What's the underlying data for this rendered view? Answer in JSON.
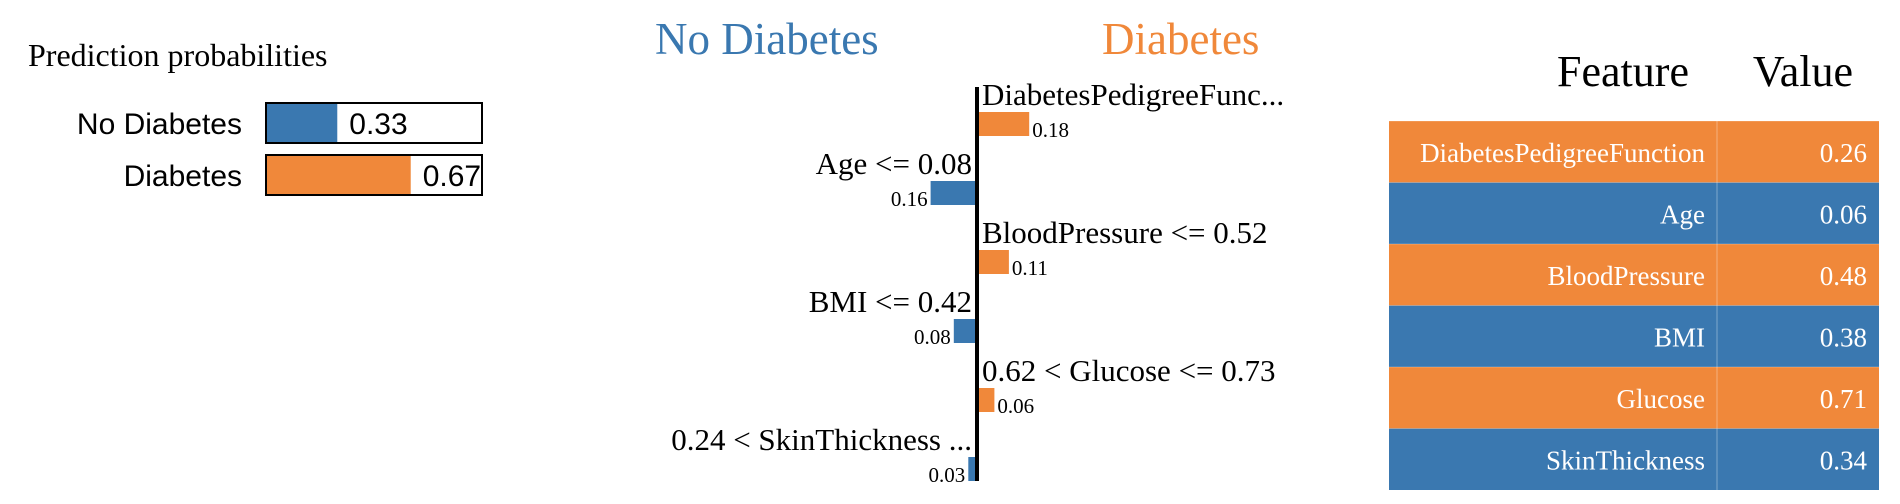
{
  "prediction_probabilities": {
    "title": "Prediction probabilities",
    "items": [
      {
        "label": "No Diabetes",
        "value": 0.33,
        "value_text": "0.33",
        "color": "#3a78b0"
      },
      {
        "label": "Diabetes",
        "value": 0.67,
        "value_text": "0.67",
        "color": "#f0883a"
      }
    ]
  },
  "explanation": {
    "left_title": "No Diabetes",
    "right_title": "Diabetes",
    "left_color": "#3a78b0",
    "right_color": "#f0883a"
  },
  "feature_table": {
    "headers": [
      "Feature",
      "Value"
    ],
    "rows": [
      {
        "feature": "DiabetesPedigreeFunction",
        "value": "0.26",
        "side": "right"
      },
      {
        "feature": "Age",
        "value": "0.06",
        "side": "left"
      },
      {
        "feature": "BloodPressure",
        "value": "0.48",
        "side": "right"
      },
      {
        "feature": "BMI",
        "value": "0.38",
        "side": "left"
      },
      {
        "feature": "Glucose",
        "value": "0.71",
        "side": "right"
      },
      {
        "feature": "SkinThickness",
        "value": "0.34",
        "side": "left"
      }
    ]
  },
  "chart_data": [
    {
      "type": "bar",
      "title": "Prediction probabilities",
      "categories": [
        "No Diabetes",
        "Diabetes"
      ],
      "values": [
        0.33,
        0.67
      ],
      "xlim": [
        0,
        1
      ],
      "grid": false
    },
    {
      "type": "bar",
      "title": "",
      "orientation": "horizontal",
      "legend": [
        "No Diabetes",
        "Diabetes"
      ],
      "categories": [
        "DiabetesPedigreeFunc...",
        "Age <= 0.08",
        "BloodPressure <= 0.52",
        "BMI <= 0.42",
        "0.62 < Glucose <= 0.73",
        "0.24 < SkinThickness ..."
      ],
      "values": [
        0.18,
        -0.16,
        0.11,
        -0.08,
        0.06,
        -0.03
      ],
      "value_labels": [
        "0.18",
        "0.16",
        "0.11",
        "0.08",
        "0.06",
        "0.03"
      ],
      "grid": false
    }
  ]
}
